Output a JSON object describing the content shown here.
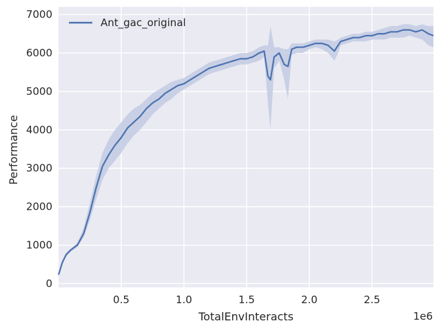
{
  "chart_data": {
    "type": "line",
    "title": "",
    "xlabel": "TotalEnvInteracts",
    "ylabel": "Performance",
    "x_offset_label": "1e6",
    "xlim": [
      0,
      2990000
    ],
    "ylim": [
      -100,
      7200
    ],
    "x_ticks": [
      500000,
      1000000,
      1500000,
      2000000,
      2500000
    ],
    "x_tick_labels": [
      "0.5",
      "1.0",
      "1.5",
      "2.0",
      "2.5"
    ],
    "y_ticks": [
      0,
      1000,
      2000,
      3000,
      4000,
      5000,
      6000,
      7000
    ],
    "y_tick_labels": [
      "0",
      "1000",
      "2000",
      "3000",
      "4000",
      "5000",
      "6000",
      "7000"
    ],
    "grid": true,
    "legend_position": "top-left",
    "colors": {
      "background": "#eaeaf2",
      "grid": "#ffffff",
      "line": "#4c72b0",
      "band": "#c5cde3"
    },
    "series": [
      {
        "name": "Ant_gac_original",
        "x": [
          0,
          30000,
          60000,
          100000,
          150000,
          200000,
          250000,
          300000,
          350000,
          400000,
          450000,
          500000,
          550000,
          600000,
          650000,
          700000,
          750000,
          800000,
          850000,
          900000,
          950000,
          1000000,
          1050000,
          1100000,
          1150000,
          1200000,
          1250000,
          1300000,
          1350000,
          1400000,
          1450000,
          1500000,
          1550000,
          1600000,
          1640000,
          1670000,
          1690000,
          1720000,
          1760000,
          1800000,
          1830000,
          1860000,
          1900000,
          1950000,
          2000000,
          2050000,
          2100000,
          2150000,
          2200000,
          2230000,
          2250000,
          2300000,
          2350000,
          2400000,
          2450000,
          2500000,
          2550000,
          2600000,
          2650000,
          2700000,
          2750000,
          2800000,
          2850000,
          2900000,
          2950000,
          2990000
        ],
        "mean": [
          230,
          550,
          750,
          880,
          1000,
          1300,
          1850,
          2500,
          3050,
          3350,
          3600,
          3800,
          4050,
          4200,
          4350,
          4550,
          4700,
          4800,
          4950,
          5050,
          5150,
          5200,
          5300,
          5400,
          5500,
          5600,
          5650,
          5700,
          5750,
          5800,
          5850,
          5850,
          5900,
          6000,
          6050,
          5400,
          5300,
          5900,
          6000,
          5700,
          5650,
          6100,
          6150,
          6150,
          6200,
          6250,
          6250,
          6200,
          6050,
          6200,
          6300,
          6350,
          6400,
          6400,
          6450,
          6450,
          6500,
          6500,
          6550,
          6550,
          6600,
          6600,
          6550,
          6600,
          6500,
          6450
        ],
        "lower": [
          200,
          500,
          700,
          840,
          950,
          1200,
          1650,
          2200,
          2700,
          3000,
          3200,
          3400,
          3650,
          3850,
          4000,
          4200,
          4400,
          4550,
          4700,
          4800,
          4950,
          5050,
          5150,
          5250,
          5350,
          5450,
          5500,
          5550,
          5600,
          5650,
          5700,
          5700,
          5750,
          5800,
          5900,
          4700,
          4000,
          5600,
          5800,
          5300,
          4800,
          5950,
          6000,
          6000,
          6100,
          6150,
          6100,
          6000,
          5800,
          6000,
          6200,
          6250,
          6300,
          6300,
          6300,
          6350,
          6350,
          6350,
          6400,
          6400,
          6400,
          6450,
          6400,
          6350,
          6200,
          6150
        ],
        "upper": [
          260,
          600,
          800,
          920,
          1060,
          1450,
          2100,
          2800,
          3400,
          3750,
          4000,
          4200,
          4400,
          4550,
          4650,
          4800,
          4950,
          5050,
          5150,
          5250,
          5300,
          5350,
          5450,
          5550,
          5650,
          5750,
          5800,
          5850,
          5900,
          5950,
          6000,
          6000,
          6050,
          6150,
          6200,
          6200,
          6700,
          6150,
          6150,
          6100,
          6100,
          6250,
          6250,
          6250,
          6300,
          6350,
          6350,
          6350,
          6300,
          6350,
          6400,
          6450,
          6500,
          6500,
          6550,
          6550,
          6600,
          6650,
          6700,
          6700,
          6750,
          6750,
          6700,
          6750,
          6700,
          6700
        ]
      }
    ]
  }
}
